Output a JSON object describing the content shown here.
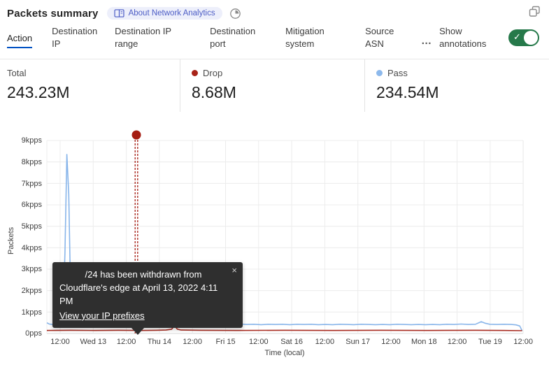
{
  "header": {
    "title": "Packets summary",
    "badge_label": "About Network Analytics",
    "icons": {
      "book": "book-icon",
      "pie": "time-range-icon",
      "expand": "expand-window-icon"
    }
  },
  "tabs": {
    "items": [
      {
        "label": "Action",
        "active": true
      },
      {
        "label": "Destination IP",
        "active": false
      },
      {
        "label": "Destination IP range",
        "active": false
      },
      {
        "label": "Destination port",
        "active": false
      },
      {
        "label": "Mitigation system",
        "active": false
      },
      {
        "label": "Source ASN",
        "active": false
      }
    ],
    "more_glyph": "…",
    "annotations_label": "Show annotations",
    "toggle_on": true,
    "toggle_check": "✓",
    "accent_color": "#0051c3",
    "toggle_color": "#26794a"
  },
  "stats": {
    "total": {
      "label": "Total",
      "value": "243.23M"
    },
    "drop": {
      "label": "Drop",
      "value": "8.68M",
      "dot_color": "#a82318"
    },
    "pass": {
      "label": "Pass",
      "value": "234.54M",
      "dot_color": "#8db9ec"
    }
  },
  "tooltip": {
    "line1": "/24 has been withdrawn from",
    "line2": "Cloudflare's edge at April 13, 2022 4:11 PM",
    "link_label": "View your IP prefixes",
    "close_glyph": "×"
  },
  "chart_data": {
    "type": "line",
    "ylabel": "Packets",
    "xlabel": "Time (local)",
    "ylim": [
      0,
      9
    ],
    "y_unit": "kpps",
    "grid": true,
    "y_ticks": [
      "9kpps",
      "8kpps",
      "7kpps",
      "6kpps",
      "5kpps",
      "4kpps",
      "3kpps",
      "2kpps",
      "1kpps",
      "0pps"
    ],
    "x_ticks": [
      "12:00",
      "Wed 13",
      "12:00",
      "Thu 14",
      "12:00",
      "Fri 15",
      "12:00",
      "Sat 16",
      "12:00",
      "Sun 17",
      "12:00",
      "Mon 18",
      "12:00",
      "Tue 19",
      "12:00"
    ],
    "annotation": {
      "x_frac": 0.188,
      "color": "#a51d12"
    },
    "series": [
      {
        "name": "Pass",
        "color": "#88b5ea",
        "points": [
          [
            0.0,
            0.5
          ],
          [
            0.005,
            0.44
          ],
          [
            0.012,
            0.42
          ],
          [
            0.02,
            0.45
          ],
          [
            0.026,
            0.43
          ],
          [
            0.03,
            0.6
          ],
          [
            0.034,
            0.9
          ],
          [
            0.038,
            3.8
          ],
          [
            0.042,
            8.35
          ],
          [
            0.046,
            6.5
          ],
          [
            0.05,
            1.6
          ],
          [
            0.055,
            0.95
          ],
          [
            0.062,
            0.8
          ],
          [
            0.07,
            0.66
          ],
          [
            0.08,
            0.58
          ],
          [
            0.09,
            0.52
          ],
          [
            0.1,
            0.5
          ],
          [
            0.11,
            0.47
          ],
          [
            0.12,
            0.46
          ],
          [
            0.126,
            0.55
          ],
          [
            0.131,
            0.68
          ],
          [
            0.136,
            0.56
          ],
          [
            0.145,
            0.47
          ],
          [
            0.155,
            0.46
          ],
          [
            0.163,
            0.5
          ],
          [
            0.17,
            0.58
          ],
          [
            0.176,
            0.48
          ],
          [
            0.185,
            0.44
          ],
          [
            0.195,
            0.43
          ],
          [
            0.21,
            0.45
          ],
          [
            0.225,
            0.42
          ],
          [
            0.24,
            0.44
          ],
          [
            0.255,
            0.41
          ],
          [
            0.27,
            0.43
          ],
          [
            0.285,
            0.41
          ],
          [
            0.3,
            0.43
          ],
          [
            0.315,
            0.41
          ],
          [
            0.33,
            0.42
          ],
          [
            0.345,
            0.44
          ],
          [
            0.36,
            0.41
          ],
          [
            0.375,
            0.43
          ],
          [
            0.39,
            0.41
          ],
          [
            0.405,
            0.44
          ],
          [
            0.42,
            0.42
          ],
          [
            0.435,
            0.43
          ],
          [
            0.45,
            0.41
          ],
          [
            0.465,
            0.43
          ],
          [
            0.48,
            0.42
          ],
          [
            0.495,
            0.43
          ],
          [
            0.51,
            0.41
          ],
          [
            0.525,
            0.43
          ],
          [
            0.54,
            0.42
          ],
          [
            0.555,
            0.43
          ],
          [
            0.57,
            0.41
          ],
          [
            0.585,
            0.42
          ],
          [
            0.6,
            0.41
          ],
          [
            0.615,
            0.43
          ],
          [
            0.63,
            0.42
          ],
          [
            0.645,
            0.41
          ],
          [
            0.66,
            0.43
          ],
          [
            0.675,
            0.42
          ],
          [
            0.69,
            0.41
          ],
          [
            0.705,
            0.42
          ],
          [
            0.72,
            0.41
          ],
          [
            0.735,
            0.43
          ],
          [
            0.75,
            0.42
          ],
          [
            0.765,
            0.41
          ],
          [
            0.78,
            0.42
          ],
          [
            0.795,
            0.41
          ],
          [
            0.81,
            0.42
          ],
          [
            0.825,
            0.41
          ],
          [
            0.84,
            0.43
          ],
          [
            0.855,
            0.42
          ],
          [
            0.87,
            0.44
          ],
          [
            0.885,
            0.42
          ],
          [
            0.9,
            0.43
          ],
          [
            0.912,
            0.55
          ],
          [
            0.92,
            0.48
          ],
          [
            0.93,
            0.43
          ],
          [
            0.945,
            0.42
          ],
          [
            0.96,
            0.43
          ],
          [
            0.975,
            0.42
          ],
          [
            0.985,
            0.4
          ],
          [
            0.993,
            0.35
          ],
          [
            0.998,
            0.12
          ]
        ]
      },
      {
        "name": "Drop",
        "color": "#a82c21",
        "points": [
          [
            0.0,
            0.14
          ],
          [
            0.05,
            0.15
          ],
          [
            0.1,
            0.14
          ],
          [
            0.15,
            0.15
          ],
          [
            0.2,
            0.14
          ],
          [
            0.23,
            0.15
          ],
          [
            0.25,
            0.16
          ],
          [
            0.262,
            0.2
          ],
          [
            0.268,
            0.37
          ],
          [
            0.274,
            0.2
          ],
          [
            0.282,
            0.16
          ],
          [
            0.32,
            0.15
          ],
          [
            0.4,
            0.14
          ],
          [
            0.5,
            0.15
          ],
          [
            0.6,
            0.14
          ],
          [
            0.7,
            0.15
          ],
          [
            0.8,
            0.14
          ],
          [
            0.9,
            0.15
          ],
          [
            0.96,
            0.14
          ],
          [
            0.998,
            0.13
          ]
        ]
      }
    ]
  }
}
